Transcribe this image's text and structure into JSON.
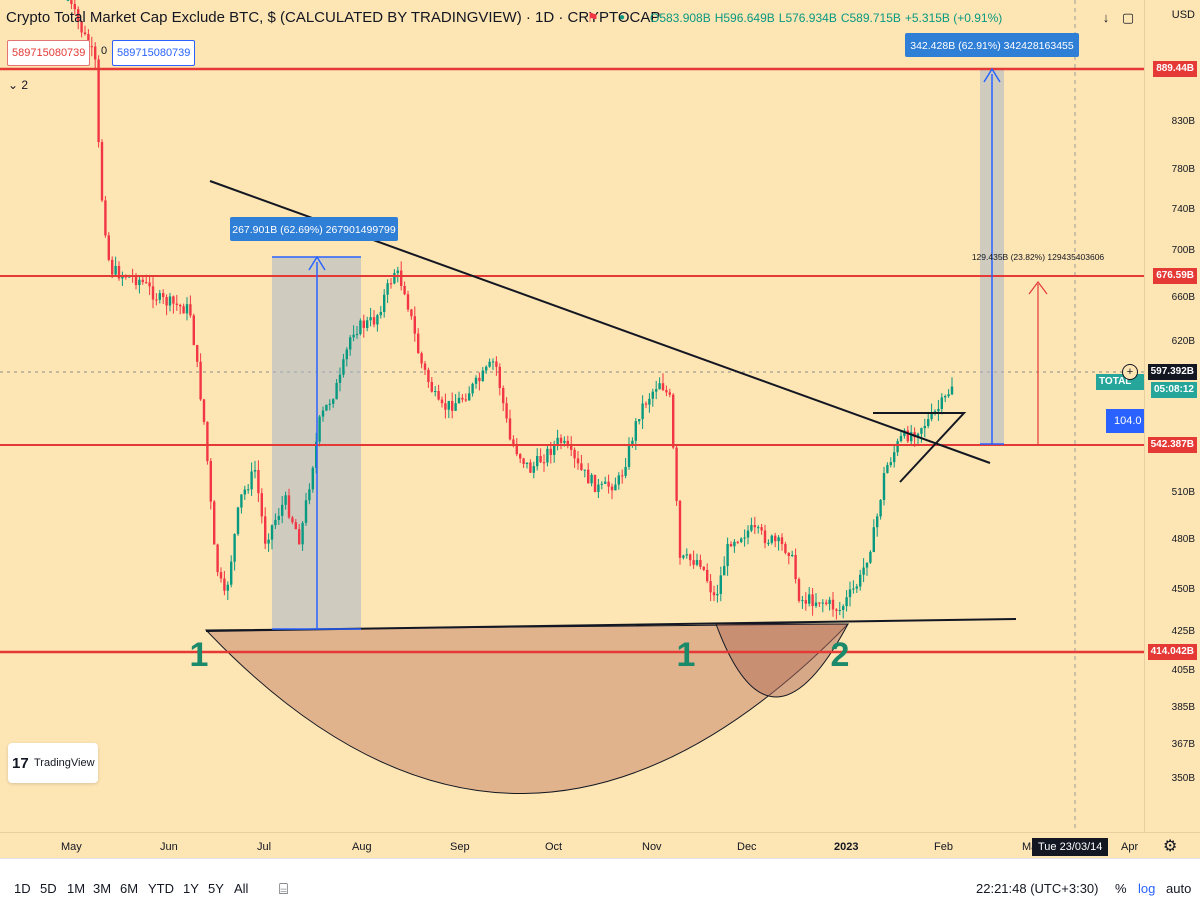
{
  "header": {
    "title": "Crypto Total Market Cap Exclude BTC, $ (CALCULATED BY TRADINGVIEW) · 1D · CRYPTOCAP",
    "ohlc": {
      "open": "O583.908B",
      "high": "H596.649B",
      "low": "L576.934B",
      "close": "C589.715B",
      "change": "+5.315B (+0.91%)"
    },
    "price_box_sell": "589715080739",
    "zero": "0",
    "price_box_buy": "589715080739",
    "indicator_count": "2",
    "icons": {
      "download": "download-icon",
      "fullscreen": "fullscreen-icon",
      "flag": "flag-icon",
      "dot": "dot-icon"
    }
  },
  "currency": "USD",
  "price_axis": {
    "labels": [
      "830B",
      "780B",
      "740B",
      "700B",
      "660B",
      "620B",
      "510B",
      "480B",
      "450B",
      "425B",
      "405B",
      "385B",
      "367B",
      "350B"
    ],
    "tags": {
      "top": "889.44B",
      "mid_high": "676.59B",
      "current": "597.392B",
      "countdown": "05:08:12",
      "mid_low": "542.387B",
      "bottom": "414.042B"
    },
    "total_tag": "TOTAL",
    "side_tag": "104.0"
  },
  "time_axis": {
    "labels": [
      "May",
      "Jun",
      "Jul",
      "Aug",
      "Sep",
      "Oct",
      "Nov",
      "Dec",
      "2023",
      "Feb",
      "Ma",
      "Apr"
    ],
    "crosshair": "Tue 23/03/14"
  },
  "annotations": {
    "measure1": "267.901B (62.69%) 267901499799",
    "measure2": "342.428B (62.91%) 342428163455",
    "measure3": "129.435B (23.82%) 129435403606",
    "label_1_left": "1",
    "label_1_mid": "1",
    "label_2": "2",
    "logo": "TradingView"
  },
  "bottom_toolbar": {
    "ranges": [
      "1D",
      "5D",
      "1M",
      "3M",
      "6M",
      "YTD",
      "1Y",
      "5Y",
      "All"
    ],
    "time": "22:21:48 (UTC+3:30)",
    "percent": "%",
    "log": "log",
    "auto": "auto",
    "icons": {
      "date_range": "calendar-icon",
      "settings": "gear-icon"
    }
  },
  "colors": {
    "background": "#fde5b4",
    "up": "#089981",
    "down": "#f23645",
    "level": "#e53935",
    "accent": "#2962ff"
  }
}
